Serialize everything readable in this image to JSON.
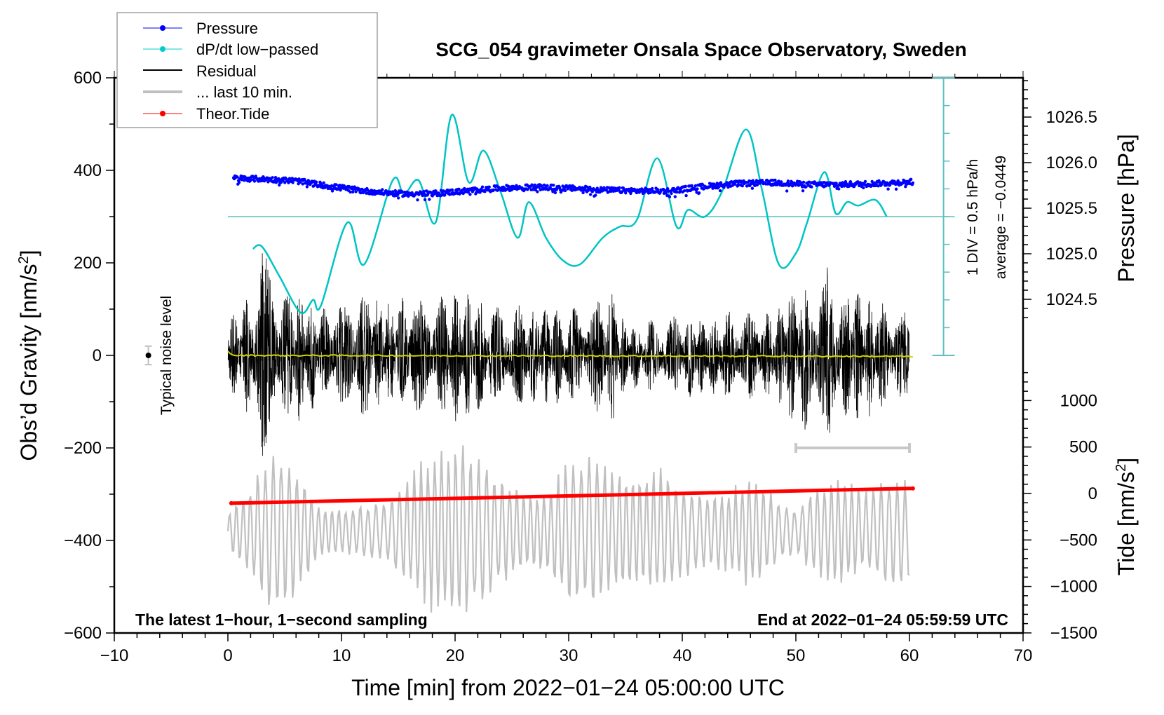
{
  "chart_data": {
    "type": "line",
    "title": "SCG_054 gravimeter Onsala Space Observatory, Sweden",
    "xlabel": "Time [min] from 2022−01−24 05:00:00 UTC",
    "ylabel_left": "Obs’d Gravity [nm/s²]",
    "ylabel_left_main": "Obs’d Gravity [nm/s",
    "ylabel_left_sup": "2",
    "ylabel_left_end": "]",
    "ylabel_right_pressure": "Pressure [hPa]",
    "ylabel_right_tide_main": "Tide [nm/s",
    "ylabel_right_tide_sup": "2",
    "ylabel_right_tide_end": "]",
    "xlim": [
      -10,
      70
    ],
    "ylim": [
      -600,
      600
    ],
    "pressure_lim": [
      1024.5,
      1026.5
    ],
    "tide_lim": [
      -1500,
      1000
    ],
    "x_ticks": [
      -10,
      0,
      10,
      20,
      30,
      40,
      50,
      60,
      70
    ],
    "x_tick_labels": [
      "−10",
      "0",
      "10",
      "20",
      "30",
      "40",
      "50",
      "60",
      "70"
    ],
    "y_ticks": [
      -600,
      -400,
      -200,
      0,
      200,
      400,
      600
    ],
    "y_tick_labels": [
      "−600",
      "−400",
      "−200",
      "0",
      "200",
      "400",
      "600"
    ],
    "pressure_ticks": [
      1024.5,
      1025.0,
      1025.5,
      1026.0,
      1026.5
    ],
    "pressure_tick_labels": [
      "1024.5",
      "1025.0",
      "1025.5",
      "1026.0",
      "1026.5"
    ],
    "tide_ticks": [
      -1500,
      -1000,
      -500,
      0,
      500,
      1000
    ],
    "tide_tick_labels": [
      "−1500",
      "−1000",
      "−500",
      "0",
      "500",
      "1000"
    ],
    "grid": false,
    "legend_position": "top-left",
    "legend": [
      {
        "label": "Pressure",
        "color": "#0000ff",
        "style": "line-dot"
      },
      {
        "label": "dP/dt low−passed",
        "color": "#00cccc",
        "style": "line-dot"
      },
      {
        "label": "Residual",
        "color": "#000000",
        "style": "line"
      },
      {
        "label": "... last 10 min.",
        "color": "#c0c0c0",
        "style": "thick-line"
      },
      {
        "label": "Theor.Tide",
        "color": "#ff0000",
        "style": "line-dot"
      }
    ],
    "annotations": {
      "bottom_left": "The latest 1−hour, 1−second sampling",
      "bottom_right": "End at 2022−01−24 05:59:59 UTC",
      "noise_label": "Typical noise level",
      "noise_marker": {
        "x": -7,
        "value": 0,
        "error": 20
      },
      "dpdt_scale_text": "1 DIV = 0.5 hPa/h",
      "dpdt_average_text": "average = −0.0449",
      "dpdt_scale_axis": {
        "x_min": 63,
        "divisions": 10,
        "div_value_hPa_per_h": 0.5,
        "zero_line_gravity_equiv": 300
      },
      "last10_bar": {
        "x_start": 50,
        "x_end": 60,
        "gravity_value": -200
      }
    },
    "series": [
      {
        "name": "Pressure",
        "axis": "pressure",
        "color": "#0000ff",
        "x": [
          0.5,
          3,
          6,
          9,
          12,
          15,
          18,
          21,
          24,
          27,
          30,
          33,
          36,
          39,
          42,
          45,
          48,
          51,
          54,
          57,
          60.3
        ],
        "values": [
          1025.83,
          1025.82,
          1025.8,
          1025.74,
          1025.69,
          1025.66,
          1025.66,
          1025.69,
          1025.72,
          1025.73,
          1025.72,
          1025.7,
          1025.69,
          1025.69,
          1025.74,
          1025.77,
          1025.78,
          1025.76,
          1025.76,
          1025.77,
          1025.79
        ],
        "scatter_noise_hPa": 0.03
      },
      {
        "name": "dP/dt low-passed",
        "axis": "dpdt",
        "unit": "hPa/h",
        "color": "#00c4c4",
        "x": [
          2.2,
          3,
          4.5,
          6.4,
          7.5,
          8.2,
          10.5,
          12,
          14.5,
          15.5,
          16.8,
          18.3,
          19.7,
          21.2,
          22.5,
          24,
          25.5,
          26.5,
          28,
          29.5,
          31,
          33,
          34.5,
          36,
          37.8,
          39.5,
          40.5,
          42,
          43.5,
          45.6,
          47,
          48.5,
          50,
          51,
          52.5,
          53.5,
          54.5,
          55.5,
          57,
          58
        ],
        "values": [
          -0.58,
          -0.54,
          -1.06,
          -1.73,
          -1.5,
          -1.6,
          -0.11,
          -0.86,
          0.65,
          0.4,
          0.65,
          -0.1,
          1.83,
          0.62,
          1.19,
          0.45,
          -0.38,
          0.26,
          -0.38,
          -0.79,
          -0.86,
          -0.38,
          -0.18,
          -0.06,
          1.05,
          -0.18,
          0.12,
          0.0,
          0.45,
          1.57,
          0.5,
          -0.86,
          -0.66,
          -0.1,
          0.8,
          0.06,
          0.26,
          0.2,
          0.3,
          0.0
        ]
      },
      {
        "name": "Residual",
        "axis": "gravity",
        "color": "#000000",
        "x_range": [
          0,
          60
        ],
        "envelope_x": [
          0,
          2,
          3,
          4,
          5,
          6,
          8,
          10,
          12,
          14,
          16,
          18,
          20,
          22,
          24,
          26,
          28,
          30,
          32,
          34,
          35,
          38,
          40,
          42,
          44,
          46,
          48,
          50,
          52,
          53,
          54,
          56,
          58,
          60
        ],
        "envelope_amplitude": [
          90,
          130,
          250,
          170,
          140,
          160,
          110,
          110,
          150,
          120,
          130,
          120,
          150,
          130,
          110,
          110,
          110,
          100,
          120,
          150,
          70,
          80,
          90,
          90,
          100,
          100,
          90,
          170,
          160,
          200,
          150,
          140,
          110,
          90
        ]
      },
      {
        "name": "Smoothed residual",
        "axis": "gravity",
        "color": "#d4d400",
        "x": [
          0,
          0.4,
          60,
          60.3
        ],
        "values": [
          10,
          0,
          -2,
          -5
        ]
      },
      {
        "name": "... last 10 min.",
        "axis": "gravity",
        "color": "#c0c0c0",
        "x_range": [
          0,
          60
        ],
        "offset": -380,
        "envelope_x": [
          0,
          2,
          4,
          6,
          8,
          10,
          12,
          14,
          16,
          18,
          20,
          22,
          24,
          26,
          28,
          30,
          32,
          34,
          36,
          38,
          40,
          42,
          44,
          46,
          48,
          50,
          52,
          54,
          56,
          58,
          60
        ],
        "envelope_amplitude": [
          40,
          100,
          190,
          150,
          60,
          50,
          60,
          70,
          130,
          180,
          200,
          170,
          120,
          90,
          90,
          160,
          170,
          130,
          130,
          150,
          110,
          80,
          90,
          130,
          80,
          50,
          110,
          120,
          90,
          120,
          110
        ]
      },
      {
        "name": "Theor.Tide",
        "axis": "tide",
        "color": "#ff0000",
        "x": [
          0.3,
          60.3
        ],
        "values": [
          -105,
          55
        ]
      }
    ]
  }
}
